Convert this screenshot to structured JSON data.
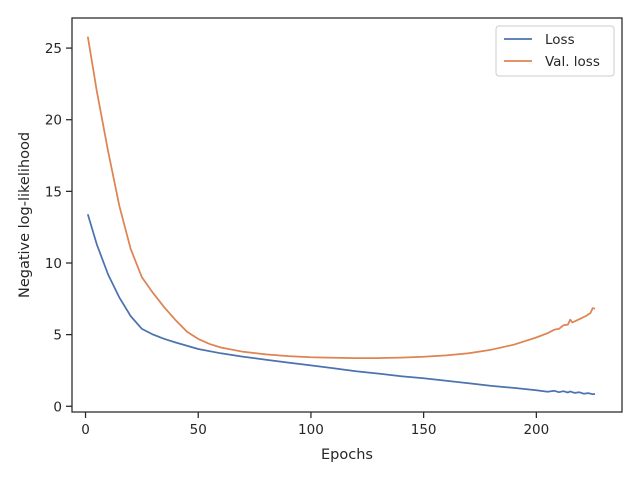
{
  "chart_data": {
    "type": "line",
    "xlabel": "Epochs",
    "ylabel": "Negative log-likelihood",
    "xlim": [
      -6,
      238
    ],
    "ylim": [
      -0.4,
      27.1
    ],
    "x_ticks": [
      0,
      50,
      100,
      150,
      200
    ],
    "y_ticks": [
      0,
      5,
      10,
      15,
      20,
      25
    ],
    "grid": false,
    "legend_position": "top-right",
    "series": [
      {
        "name": "Loss",
        "color": "#4c72b0",
        "x": [
          1,
          5,
          10,
          15,
          20,
          25,
          30,
          35,
          40,
          50,
          60,
          70,
          80,
          90,
          100,
          110,
          120,
          130,
          140,
          150,
          160,
          170,
          180,
          190,
          200,
          205,
          208,
          210,
          212,
          214,
          215,
          217,
          219,
          221,
          223,
          225,
          226
        ],
        "y": [
          13.4,
          11.3,
          9.2,
          7.6,
          6.3,
          5.4,
          5.0,
          4.7,
          4.45,
          4.0,
          3.7,
          3.45,
          3.25,
          3.05,
          2.85,
          2.65,
          2.45,
          2.28,
          2.1,
          1.95,
          1.78,
          1.6,
          1.42,
          1.28,
          1.12,
          1.02,
          1.08,
          0.98,
          1.05,
          0.96,
          1.04,
          0.93,
          0.98,
          0.88,
          0.92,
          0.84,
          0.86
        ]
      },
      {
        "name": "Val. loss",
        "color": "#dd8452",
        "x": [
          1,
          5,
          10,
          15,
          20,
          25,
          30,
          35,
          40,
          45,
          50,
          55,
          60,
          70,
          80,
          90,
          100,
          110,
          120,
          130,
          140,
          150,
          160,
          170,
          180,
          190,
          195,
          200,
          205,
          208,
          210,
          212,
          214,
          215,
          216,
          218,
          220,
          222,
          224,
          225,
          226
        ],
        "y": [
          25.8,
          22.0,
          17.8,
          14.0,
          11.0,
          9.0,
          7.9,
          6.9,
          6.0,
          5.2,
          4.7,
          4.35,
          4.1,
          3.8,
          3.62,
          3.5,
          3.42,
          3.38,
          3.36,
          3.36,
          3.4,
          3.45,
          3.55,
          3.7,
          3.95,
          4.3,
          4.55,
          4.8,
          5.1,
          5.35,
          5.4,
          5.65,
          5.7,
          6.05,
          5.85,
          6.0,
          6.15,
          6.3,
          6.5,
          6.85,
          6.8
        ]
      }
    ]
  }
}
